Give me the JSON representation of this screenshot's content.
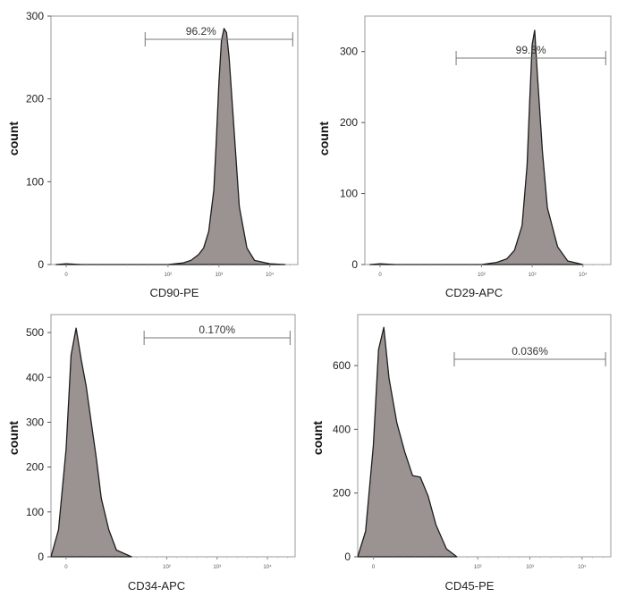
{
  "chart_data": [
    {
      "type": "area",
      "title": "",
      "xlabel": "CD90-PE",
      "ylabel": "count",
      "xscale": "log",
      "xlim_decades": [
        -0.3,
        4.55
      ],
      "xticks": [
        "0",
        "10^2",
        "10^3",
        "10^4",
        "10^5"
      ],
      "xtick_decades": [
        0,
        2,
        3,
        4,
        5
      ],
      "ylim": [
        0,
        300
      ],
      "yticks": [
        0,
        100,
        200,
        300
      ],
      "gate": {
        "label": "96.2%",
        "range_decades": [
          1.55,
          4.45
        ]
      },
      "histogram": {
        "x_decades": [
          -0.2,
          0.0,
          0.3,
          2.0,
          2.3,
          2.45,
          2.6,
          2.7,
          2.8,
          2.9,
          2.95,
          3.0,
          3.05,
          3.1,
          3.15,
          3.2,
          3.3,
          3.4,
          3.55,
          3.7,
          4.0,
          4.3
        ],
        "counts": [
          0,
          1,
          0,
          0,
          2,
          5,
          12,
          20,
          40,
          90,
          150,
          220,
          270,
          285,
          280,
          250,
          160,
          70,
          20,
          5,
          1,
          0
        ]
      }
    },
    {
      "type": "area",
      "title": "",
      "xlabel": "CD29-APC",
      "ylabel": "count",
      "xscale": "log",
      "xlim_decades": [
        -0.3,
        4.55
      ],
      "xticks": [
        "0",
        "10^2",
        "10^3",
        "10^4",
        "10^5"
      ],
      "xtick_decades": [
        0,
        2,
        3,
        4,
        5
      ],
      "ylim": [
        0,
        350
      ],
      "yticks": [
        0,
        100,
        200,
        300
      ],
      "gate": {
        "label": "99.3%",
        "range_decades": [
          1.5,
          4.45
        ]
      },
      "histogram": {
        "x_decades": [
          -0.2,
          0.0,
          0.3,
          2.0,
          2.3,
          2.5,
          2.65,
          2.8,
          2.9,
          2.95,
          3.0,
          3.05,
          3.1,
          3.2,
          3.3,
          3.5,
          3.7,
          4.0
        ],
        "counts": [
          0,
          1,
          0,
          0,
          3,
          8,
          20,
          55,
          140,
          230,
          310,
          330,
          270,
          160,
          80,
          25,
          5,
          0
        ]
      }
    },
    {
      "type": "area",
      "title": "",
      "xlabel": "CD34-APC",
      "ylabel": "count",
      "xscale": "log",
      "xlim_decades": [
        -0.3,
        4.55
      ],
      "xticks": [
        "0",
        "10^2",
        "10^3",
        "10^4",
        "10^5"
      ],
      "xtick_decades": [
        0,
        2,
        3,
        4,
        5
      ],
      "ylim": [
        0,
        540
      ],
      "yticks": [
        0,
        100,
        200,
        300,
        400,
        500
      ],
      "gate": {
        "label": "0.170%",
        "range_decades": [
          1.55,
          4.45
        ]
      },
      "histogram": {
        "x_decades": [
          -0.3,
          -0.15,
          0.0,
          0.1,
          0.2,
          0.3,
          0.4,
          0.5,
          0.6,
          0.7,
          0.85,
          1.0,
          1.3
        ],
        "counts": [
          0,
          60,
          240,
          450,
          510,
          440,
          380,
          300,
          220,
          130,
          60,
          15,
          0
        ]
      }
    },
    {
      "type": "area",
      "title": "",
      "xlabel": "CD45-PE",
      "ylabel": "count",
      "xscale": "log",
      "xlim_decades": [
        -0.3,
        4.55
      ],
      "xticks": [
        "0",
        "10^2",
        "10^3",
        "10^4",
        "10^5"
      ],
      "xtick_decades": [
        0,
        2,
        3,
        4,
        5
      ],
      "ylim": [
        0,
        760
      ],
      "yticks": [
        0,
        200,
        400,
        600
      ],
      "gate": {
        "label": "0.036%",
        "range_decades": [
          1.55,
          4.45
        ]
      },
      "histogram": {
        "x_decades": [
          -0.3,
          -0.15,
          0.0,
          0.1,
          0.2,
          0.3,
          0.45,
          0.6,
          0.75,
          0.9,
          1.05,
          1.2,
          1.4,
          1.6
        ],
        "counts": [
          0,
          80,
          350,
          650,
          720,
          560,
          420,
          330,
          255,
          250,
          190,
          100,
          25,
          0
        ]
      }
    }
  ]
}
